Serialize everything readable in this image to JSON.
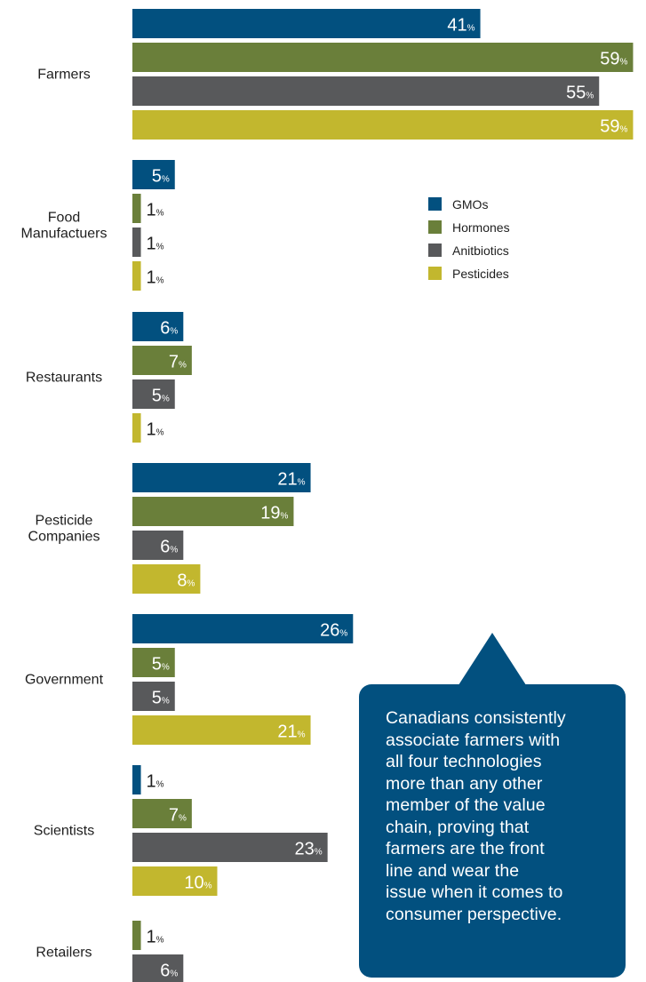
{
  "chart_data": {
    "type": "bar",
    "orientation": "horizontal",
    "categories": [
      [
        "Farmers"
      ],
      [
        "Food",
        "Manufactuers"
      ],
      [
        "Restaurants"
      ],
      [
        "Pesticide",
        "Companies"
      ],
      [
        "Government"
      ],
      [
        "Scientists"
      ],
      [
        "Retailers"
      ]
    ],
    "series": [
      {
        "name": "GMOs",
        "color": "#02507f",
        "values": [
          41,
          5,
          6,
          21,
          26,
          1,
          null
        ]
      },
      {
        "name": "Hormones",
        "color": "#6a7f3a",
        "values": [
          59,
          1,
          7,
          19,
          5,
          7,
          1
        ]
      },
      {
        "name": "Anitbiotics",
        "color": "#58595b",
        "values": [
          55,
          1,
          5,
          6,
          5,
          23,
          6
        ]
      },
      {
        "name": "Pesticides",
        "color": "#c2b72e",
        "values": [
          59,
          1,
          1,
          8,
          21,
          10,
          null
        ]
      }
    ],
    "value_suffix": "%",
    "legend_position": "right",
    "xlim": [
      0,
      59
    ]
  },
  "callout": {
    "lines": [
      "Canadians consistently",
      "associate farmers with",
      "all four technologies",
      "more than any other",
      "member of the value",
      "chain, proving that",
      "farmers are the front",
      "line and wear the",
      "issue when it comes to",
      "consumer perspective."
    ]
  }
}
